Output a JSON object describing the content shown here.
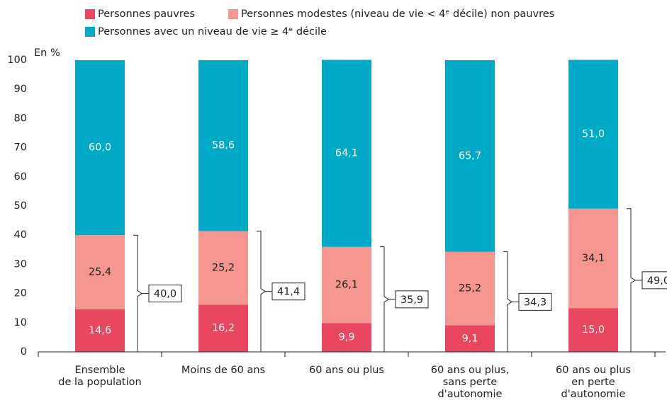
{
  "chart_data": {
    "type": "stacked_bar",
    "y_unit_label": "En %",
    "categories": [
      [
        "Ensemble",
        "de la population"
      ],
      [
        "Moins de 60 ans"
      ],
      [
        "60 ans ou plus"
      ],
      [
        "60 ans ou plus,",
        "sans perte",
        "d'autonomie"
      ],
      [
        "60 ans ou plus",
        "en perte",
        "d'autonomie"
      ]
    ],
    "series": [
      {
        "name": "Personnes pauvres",
        "color": "#e8475f",
        "values": [
          14.6,
          16.2,
          9.9,
          9.1,
          15.0
        ],
        "value_labels": [
          "14,6",
          "16,2",
          "9,9",
          "9,1",
          "15,0"
        ]
      },
      {
        "name": "Personnes modestes (niveau de vie < 4ᵉ décile) non pauvres",
        "color": "#f4968f",
        "values": [
          25.4,
          25.2,
          26.1,
          25.2,
          34.1
        ],
        "value_labels": [
          "25,4",
          "25,2",
          "26,1",
          "25,2",
          "34,1"
        ]
      },
      {
        "name": "Personnes avec un niveau de vie ≥ 4ᵉ décile",
        "color": "#00a9c6",
        "values": [
          60.0,
          58.6,
          64.1,
          65.7,
          51.0
        ],
        "value_labels": [
          "60,0",
          "58,6",
          "64,1",
          "65,7",
          "51,0"
        ]
      }
    ],
    "annotations": [
      {
        "value": 40.0,
        "label": "40,0"
      },
      {
        "value": 41.4,
        "label": "41,4"
      },
      {
        "value": 35.9,
        "label": "35,9"
      },
      {
        "value": 34.3,
        "label": "34,3"
      },
      {
        "value": 49.0,
        "label": "49,0"
      }
    ],
    "ylim": [
      0,
      100
    ],
    "yticks": [
      0,
      10,
      20,
      30,
      40,
      50,
      60,
      70,
      80,
      90,
      100
    ]
  }
}
